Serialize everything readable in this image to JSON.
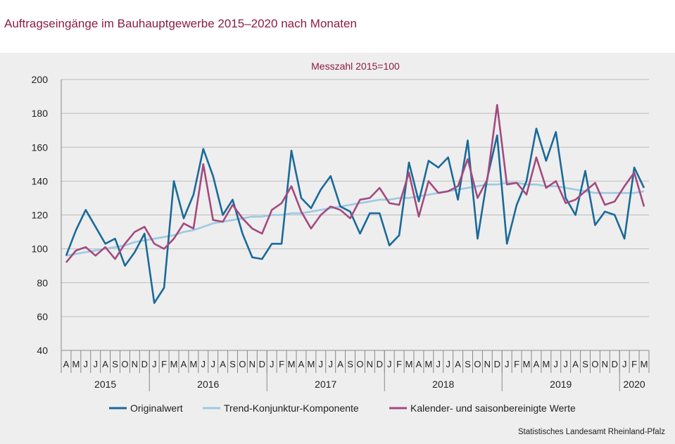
{
  "title": "Auftragseingänge im Bauhauptgewerbe 2015–2020 nach Monaten",
  "source": "Statistisches Landesamt  Rheinland-Pfalz",
  "colors": {
    "title": "#8c1d40",
    "original": "#1a6a99",
    "trend": "#9ccae3",
    "saisonbereinigt": "#a34a7f",
    "grid": "#bbbbbb",
    "panel": "#eeeeee"
  },
  "chart_data": {
    "type": "line",
    "subtitle": "Messzahl  2015=100",
    "ylim": [
      40,
      200
    ],
    "yticks": [
      40,
      60,
      80,
      100,
      120,
      140,
      160,
      180,
      200
    ],
    "grid": true,
    "legend_position": "bottom",
    "x": [
      "A",
      "M",
      "J",
      "J",
      "A",
      "S",
      "O",
      "N",
      "D",
      "J",
      "F",
      "M",
      "A",
      "M",
      "J",
      "J",
      "A",
      "S",
      "O",
      "N",
      "D",
      "J",
      "F",
      "M",
      "A",
      "M",
      "J",
      "J",
      "A",
      "S",
      "O",
      "N",
      "D",
      "J",
      "F",
      "M",
      "A",
      "M",
      "J",
      "J",
      "A",
      "S",
      "O",
      "N",
      "D",
      "J",
      "F",
      "M",
      "A",
      "M",
      "J",
      "J",
      "A",
      "S",
      "O",
      "N",
      "D",
      "J",
      "F",
      "M"
    ],
    "years": [
      {
        "label": "2015",
        "start": 0,
        "count": 9
      },
      {
        "label": "2016",
        "start": 9,
        "count": 12
      },
      {
        "label": "2017",
        "start": 21,
        "count": 12
      },
      {
        "label": "2018",
        "start": 33,
        "count": 12
      },
      {
        "label": "2019",
        "start": 45,
        "count": 12
      },
      {
        "label": "2020",
        "start": 57,
        "count": 3
      }
    ],
    "series": [
      {
        "name": "Originalwert",
        "values": [
          96,
          111,
          123,
          113,
          103,
          106,
          90,
          98,
          109,
          68,
          77,
          140,
          118,
          132,
          159,
          143,
          120,
          129,
          109,
          95,
          94,
          103,
          103,
          158,
          130,
          124,
          135,
          143,
          125,
          122,
          109,
          121,
          121,
          102,
          108,
          151,
          128,
          152,
          148,
          154,
          129,
          164,
          106,
          142,
          167,
          103,
          126,
          140,
          171,
          152,
          169,
          130,
          120,
          146,
          114,
          122,
          120,
          106,
          148,
          136
        ]
      },
      {
        "name": "Trend-Konjunktur-Komponente",
        "values": [
          96,
          97,
          98,
          99,
          100,
          101,
          102,
          104,
          105,
          106,
          107,
          108,
          110,
          111,
          113,
          115,
          116,
          117,
          118,
          119,
          119,
          120,
          120,
          121,
          121,
          122,
          123,
          124,
          125,
          126,
          127,
          128,
          129,
          129,
          130,
          130,
          131,
          132,
          133,
          134,
          135,
          136,
          137,
          138,
          138,
          139,
          139,
          138,
          138,
          137,
          137,
          136,
          135,
          134,
          133,
          133,
          133,
          133,
          133,
          134
        ]
      },
      {
        "name": "Kalender- und saisonbereinigte Werte",
        "values": [
          92,
          99,
          101,
          96,
          101,
          94,
          103,
          110,
          113,
          103,
          100,
          106,
          115,
          112,
          150,
          117,
          116,
          126,
          118,
          112,
          109,
          123,
          127,
          137,
          122,
          112,
          120,
          125,
          123,
          118,
          129,
          130,
          136,
          127,
          126,
          145,
          119,
          140,
          133,
          134,
          137,
          153,
          130,
          141,
          185,
          138,
          139,
          132,
          154,
          136,
          140,
          127,
          129,
          134,
          139,
          126,
          128,
          137,
          145,
          125
        ]
      }
    ]
  }
}
